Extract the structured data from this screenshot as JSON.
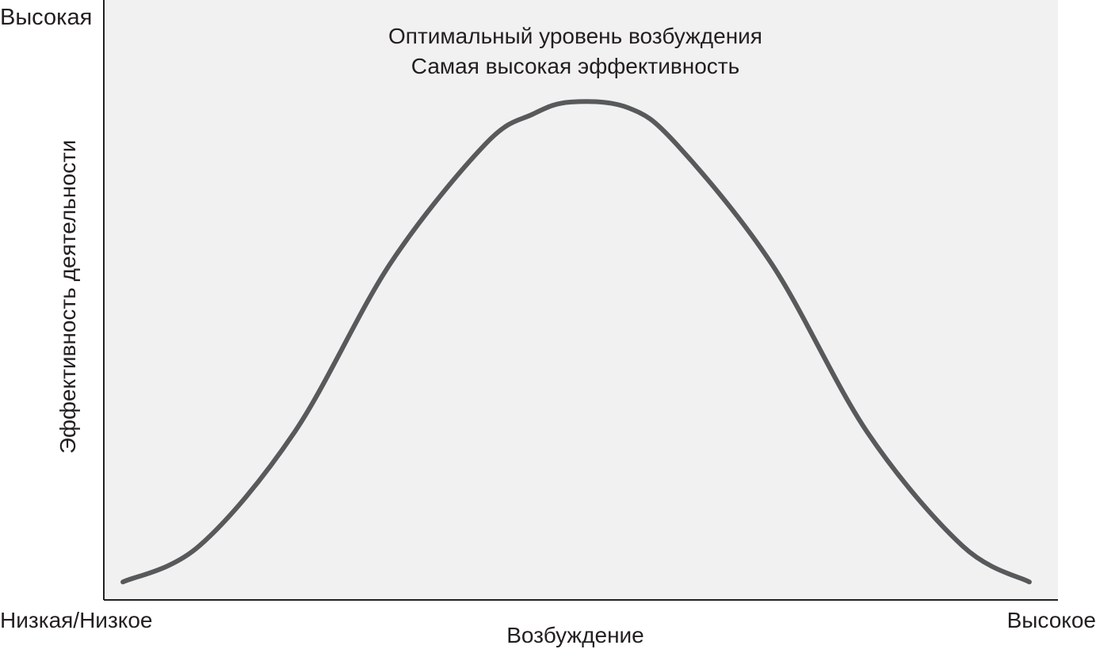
{
  "chart_data": {
    "type": "line",
    "title_lines": [
      "Оптимальный уровень возбуждения",
      "Самая высокая эффективность"
    ],
    "xlabel": "Возбуждение",
    "ylabel": "Эффективность деятельности",
    "y_high_label": "Высокая",
    "x_low_label": "Низкая/Низкое",
    "x_high_label": "Высокое",
    "xlim": [
      0,
      1
    ],
    "ylim": [
      0,
      1
    ],
    "grid": false,
    "plot_background": "#f1f1f1",
    "line_color": "#58595b",
    "axis_color": "#231f20",
    "series": [
      {
        "x": [
          0.02,
          0.1,
          0.2,
          0.3,
          0.4,
          0.45,
          0.49,
          0.55,
          0.6,
          0.7,
          0.8,
          0.9,
          0.97
        ],
        "values": [
          0.03,
          0.09,
          0.28,
          0.56,
          0.76,
          0.81,
          0.83,
          0.82,
          0.76,
          0.56,
          0.28,
          0.09,
          0.03
        ]
      }
    ]
  }
}
